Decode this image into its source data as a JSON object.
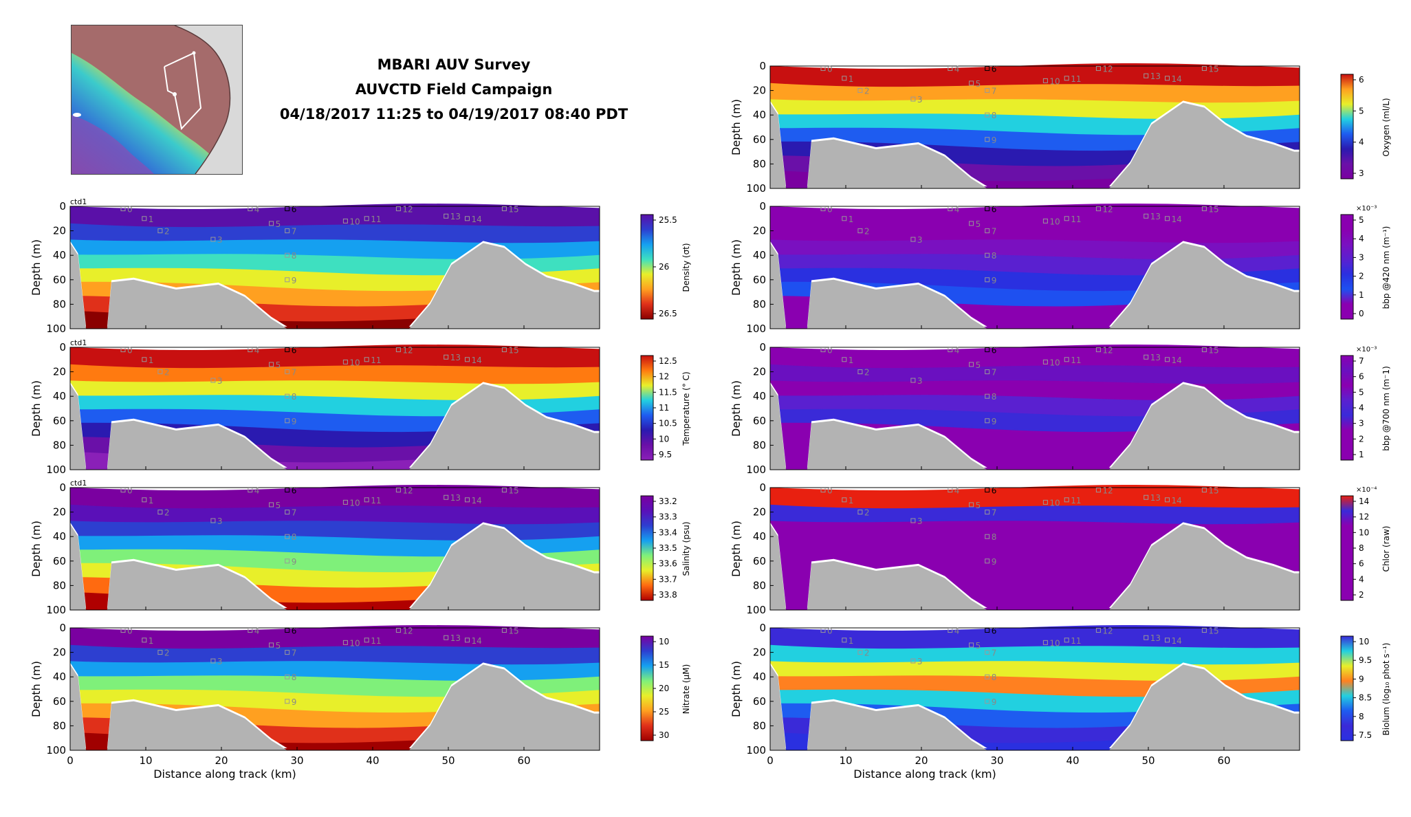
{
  "title": {
    "line1": "MBARI AUV Survey",
    "line2": "AUVCTD Field Campaign",
    "line3": "04/18/2017 11:25 to 04/19/2017 08:40 PDT"
  },
  "common": {
    "ylabel": "Depth (m)",
    "xlabel": "Distance along track (km)",
    "y_ticks": [
      "0",
      "20",
      "40",
      "60",
      "80",
      "100"
    ],
    "x_ticks": [
      "0",
      "10",
      "20",
      "30",
      "40",
      "50",
      "60"
    ]
  },
  "map": {
    "icon": "survey-map-icon",
    "colors": {
      "land": "#d9d9d9",
      "shelf": "#a56b6b"
    }
  },
  "chart_data": [
    {
      "type": "heatmap",
      "panel": "density",
      "tag": "ctd1",
      "colorbar_label": "Density (σt)",
      "colorbar_ticks": [
        "25.5",
        "26",
        "26.5"
      ],
      "colorbar_scale": "",
      "ylim": [
        0,
        100
      ],
      "xlim": [
        0,
        70
      ],
      "waypoints": [
        "0",
        "1",
        "2",
        "3",
        "4",
        "5",
        "6",
        "7",
        "8",
        "9",
        "10",
        "11",
        "12",
        "13",
        "14",
        "15"
      ]
    },
    {
      "type": "heatmap",
      "panel": "temperature",
      "tag": "ctd1",
      "colorbar_label": "Temperature (° C)",
      "colorbar_ticks": [
        "12.5",
        "12",
        "11.5",
        "11",
        "10.5",
        "10",
        "9.5"
      ],
      "colorbar_scale": "",
      "ylim": [
        0,
        100
      ],
      "xlim": [
        0,
        70
      ],
      "waypoints": [
        "0",
        "1",
        "2",
        "3",
        "4",
        "5",
        "6",
        "7",
        "8",
        "9",
        "10",
        "11",
        "12",
        "13",
        "14",
        "15"
      ]
    },
    {
      "type": "heatmap",
      "panel": "salinity",
      "tag": "ctd1",
      "colorbar_label": "Salinity (psu)",
      "colorbar_ticks": [
        "33.2",
        "33.3",
        "33.4",
        "33.5",
        "33.6",
        "33.7",
        "33.8"
      ],
      "colorbar_scale": "",
      "ylim": [
        0,
        100
      ],
      "xlim": [
        0,
        70
      ],
      "waypoints": [
        "0",
        "1",
        "2",
        "3",
        "4",
        "5",
        "6",
        "7",
        "8",
        "9",
        "10",
        "11",
        "12",
        "13",
        "14",
        "15"
      ]
    },
    {
      "type": "heatmap",
      "panel": "nitrate",
      "tag": "",
      "colorbar_label": "Nitrate (μM)",
      "colorbar_ticks": [
        "10",
        "15",
        "20",
        "25",
        "30"
      ],
      "colorbar_scale": "",
      "ylim": [
        0,
        100
      ],
      "xlim": [
        0,
        70
      ],
      "waypoints": [
        "0",
        "1",
        "2",
        "3",
        "4",
        "5",
        "6",
        "7",
        "8",
        "9",
        "10",
        "11",
        "12",
        "13",
        "14",
        "15"
      ]
    },
    {
      "type": "heatmap",
      "panel": "oxygen",
      "tag": "",
      "colorbar_label": "Oxygen (ml/L)",
      "colorbar_ticks": [
        "6",
        "5",
        "4",
        "3"
      ],
      "colorbar_scale": "",
      "ylim": [
        0,
        100
      ],
      "xlim": [
        0,
        70
      ],
      "waypoints": [
        "0",
        "1",
        "2",
        "3",
        "4",
        "5",
        "6",
        "7",
        "8",
        "9",
        "10",
        "11",
        "12",
        "13",
        "14",
        "15"
      ]
    },
    {
      "type": "heatmap",
      "panel": "bbp420",
      "tag": "",
      "colorbar_label": "bbp @420 nm (m⁻¹)",
      "colorbar_ticks": [
        "5",
        "4",
        "3",
        "2",
        "1",
        "0"
      ],
      "colorbar_scale": "×10⁻³",
      "ylim": [
        0,
        100
      ],
      "xlim": [
        0,
        70
      ],
      "waypoints": [
        "0",
        "1",
        "2",
        "3",
        "4",
        "5",
        "6",
        "7",
        "8",
        "9",
        "10",
        "11",
        "12",
        "13",
        "14",
        "15"
      ]
    },
    {
      "type": "heatmap",
      "panel": "bbp700",
      "tag": "",
      "colorbar_label": "bbp @700 nm (m⁻1)",
      "colorbar_ticks": [
        "7",
        "6",
        "5",
        "4",
        "3",
        "2",
        "1"
      ],
      "colorbar_scale": "×10⁻³",
      "ylim": [
        0,
        100
      ],
      "xlim": [
        0,
        70
      ],
      "waypoints": [
        "0",
        "1",
        "2",
        "3",
        "4",
        "5",
        "6",
        "7",
        "8",
        "9",
        "10",
        "11",
        "12",
        "13",
        "14",
        "15"
      ]
    },
    {
      "type": "heatmap",
      "panel": "chlor",
      "tag": "",
      "colorbar_label": "Chlor (raw)",
      "colorbar_ticks": [
        "14",
        "12",
        "10",
        "8",
        "6",
        "4",
        "2"
      ],
      "colorbar_scale": "×10⁻⁴",
      "ylim": [
        0,
        100
      ],
      "xlim": [
        0,
        70
      ],
      "waypoints": [
        "0",
        "1",
        "2",
        "3",
        "4",
        "5",
        "6",
        "7",
        "8",
        "9",
        "10",
        "11",
        "12",
        "13",
        "14",
        "15"
      ]
    },
    {
      "type": "heatmap",
      "panel": "biolum",
      "tag": "",
      "colorbar_label": "Biolum (log₁₀ phot s⁻¹)",
      "colorbar_ticks": [
        "10",
        "9.5",
        "9",
        "8.5",
        "8",
        "7.5"
      ],
      "colorbar_scale": "",
      "ylim": [
        0,
        100
      ],
      "xlim": [
        0,
        70
      ],
      "waypoints": [
        "0",
        "1",
        "2",
        "3",
        "4",
        "5",
        "6",
        "7",
        "8",
        "9",
        "10",
        "11",
        "12",
        "13",
        "14",
        "15"
      ]
    }
  ]
}
